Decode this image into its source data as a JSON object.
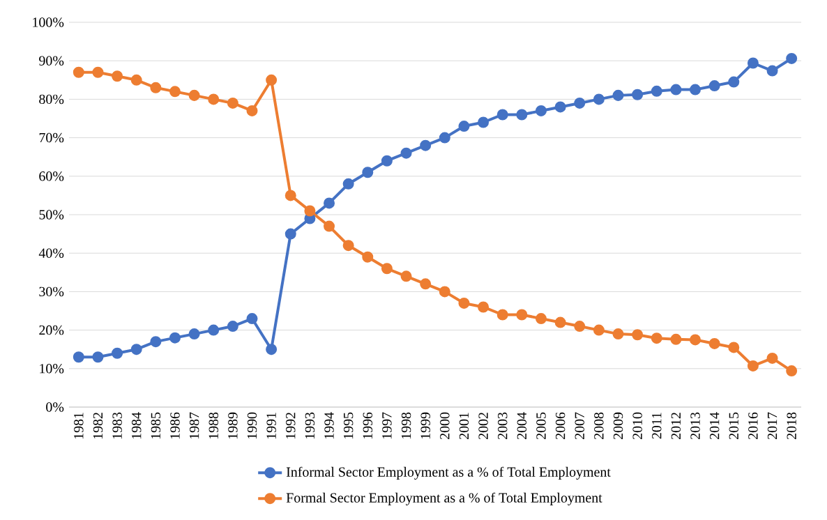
{
  "chart_data": {
    "type": "line",
    "categories": [
      "1981",
      "1982",
      "1983",
      "1984",
      "1985",
      "1986",
      "1987",
      "1988",
      "1989",
      "1990",
      "1991",
      "1992",
      "1993",
      "1994",
      "1995",
      "1996",
      "1997",
      "1998",
      "1999",
      "2000",
      "2001",
      "2002",
      "2003",
      "2004",
      "2005",
      "2006",
      "2007",
      "2008",
      "2009",
      "2010",
      "2011",
      "2012",
      "2013",
      "2014",
      "2015",
      "2016",
      "2017",
      "2018"
    ],
    "series": [
      {
        "name": "Informal Sector Employment as a % of Total Employment",
        "color": "#4472c4",
        "values": [
          13,
          13,
          14,
          15,
          17,
          18,
          19,
          20,
          21,
          23,
          15,
          45,
          49,
          53,
          58,
          61,
          64,
          66,
          68,
          70,
          73,
          74,
          76,
          76,
          77,
          78,
          79,
          80,
          81,
          81.2,
          82.1,
          82.5,
          82.5,
          83.5,
          84.5,
          89.4,
          87.4,
          90.6
        ]
      },
      {
        "name": "Formal Sector Employment as a % of Total Employment",
        "color": "#ed7d31",
        "values": [
          87,
          87,
          86,
          85,
          83,
          82,
          81,
          80,
          79,
          77,
          85,
          55,
          51,
          47,
          42,
          39,
          36,
          34,
          32,
          30,
          27,
          26,
          24,
          24,
          23,
          22,
          21,
          20,
          19,
          18.8,
          17.9,
          17.6,
          17.5,
          16.5,
          15.5,
          10.7,
          12.7,
          9.4
        ]
      }
    ],
    "ylim": [
      0,
      100
    ],
    "yticks": [
      {
        "value": 0,
        "label": "0%"
      },
      {
        "value": 10,
        "label": "10%"
      },
      {
        "value": 20,
        "label": "20%"
      },
      {
        "value": 30,
        "label": "30%"
      },
      {
        "value": 40,
        "label": "40%"
      },
      {
        "value": 50,
        "label": "50%"
      },
      {
        "value": 60,
        "label": "60%"
      },
      {
        "value": 70,
        "label": "70%"
      },
      {
        "value": 80,
        "label": "80%"
      },
      {
        "value": 90,
        "label": "90%"
      },
      {
        "value": 100,
        "label": "100%"
      }
    ],
    "grid": "y",
    "legend": "bottom",
    "marker": "circle",
    "line_style": "solid"
  }
}
